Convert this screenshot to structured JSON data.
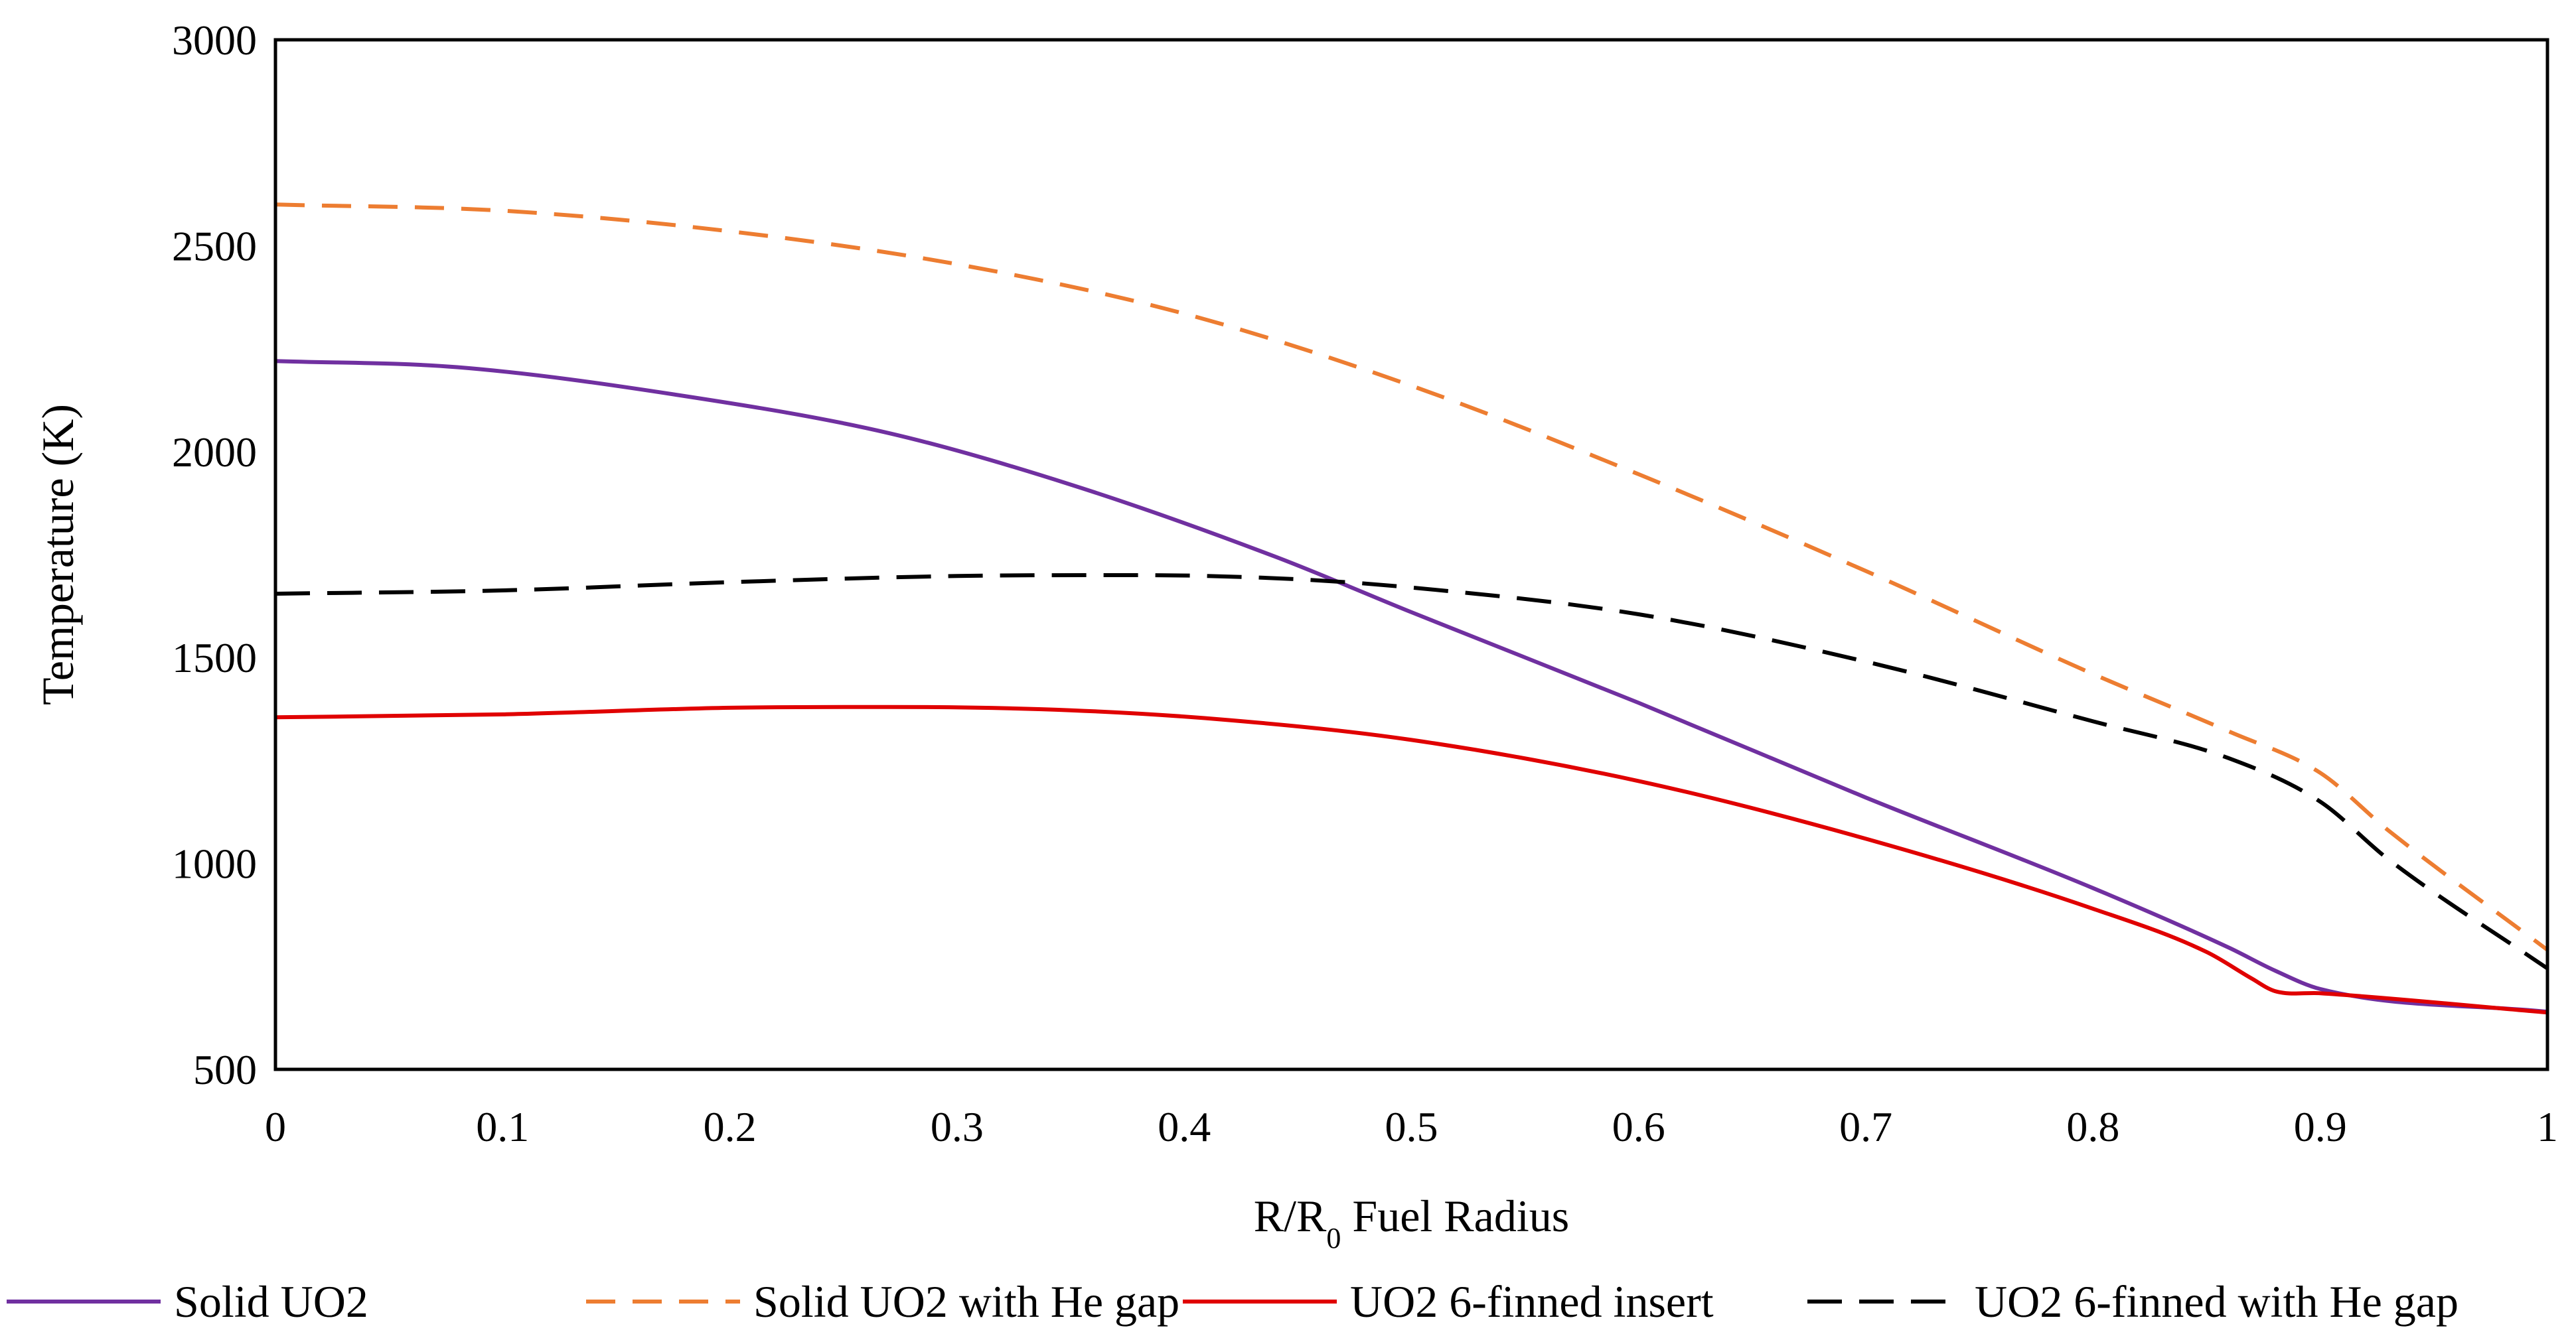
{
  "chart_data": {
    "type": "line",
    "xlabel": "R/R",
    "xlabel_subscript": "0",
    "xlabel_suffix": " Fuel Radius",
    "ylabel": "Temperature (K)",
    "xlim": [
      0,
      1
    ],
    "ylim": [
      500,
      3000
    ],
    "x_ticks": [
      0,
      0.1,
      0.2,
      0.3,
      0.4,
      0.5,
      0.6,
      0.7,
      0.8,
      0.9,
      1
    ],
    "x_tick_labels": [
      "0",
      "0.1",
      "0.2",
      "0.3",
      "0.4",
      "0.5",
      "0.6",
      "0.7",
      "0.8",
      "0.9",
      "1"
    ],
    "y_ticks": [
      500,
      1000,
      1500,
      2000,
      2500,
      3000
    ],
    "y_tick_labels": [
      "500",
      "1000",
      "1500",
      "2000",
      "2500",
      "3000"
    ],
    "grid": false,
    "legend_position": "bottom",
    "series": [
      {
        "name": "Solid UO2",
        "color": "#7030A0",
        "dash": "solid",
        "points": [
          [
            0,
            2220
          ],
          [
            0.08,
            2205
          ],
          [
            0.18,
            2135
          ],
          [
            0.27,
            2045
          ],
          [
            0.35,
            1920
          ],
          [
            0.44,
            1745
          ],
          [
            0.5,
            1610
          ],
          [
            0.6,
            1390
          ],
          [
            0.7,
            1160
          ],
          [
            0.8,
            940
          ],
          [
            0.86,
            795
          ],
          [
            0.88,
            740
          ],
          [
            0.9,
            695
          ],
          [
            1,
            640
          ]
        ]
      },
      {
        "name": "Solid UO2 with He gap",
        "color": "#ED7D31",
        "dash": "dashed",
        "points": [
          [
            0,
            2600
          ],
          [
            0.1,
            2585
          ],
          [
            0.2,
            2535
          ],
          [
            0.3,
            2455
          ],
          [
            0.4,
            2335
          ],
          [
            0.5,
            2160
          ],
          [
            0.6,
            1945
          ],
          [
            0.7,
            1710
          ],
          [
            0.8,
            1460
          ],
          [
            0.86,
            1320
          ],
          [
            0.9,
            1220
          ],
          [
            0.93,
            1080
          ],
          [
            1,
            790
          ]
        ]
      },
      {
        "name": "UO2 6-finned insert",
        "color": "#E00000",
        "dash": "solid",
        "points": [
          [
            0,
            1355
          ],
          [
            0.1,
            1362
          ],
          [
            0.2,
            1378
          ],
          [
            0.27,
            1380
          ],
          [
            0.35,
            1372
          ],
          [
            0.42,
            1348
          ],
          [
            0.5,
            1300
          ],
          [
            0.6,
            1200
          ],
          [
            0.7,
            1060
          ],
          [
            0.8,
            890
          ],
          [
            0.85,
            785
          ],
          [
            0.87,
            720
          ],
          [
            0.88,
            690
          ],
          [
            0.9,
            685
          ],
          [
            1,
            638
          ]
        ]
      },
      {
        "name": "UO2 6-finned with He gap",
        "color": "#000000",
        "dash": "dashed",
        "points": [
          [
            0,
            1655
          ],
          [
            0.1,
            1663
          ],
          [
            0.2,
            1683
          ],
          [
            0.3,
            1698
          ],
          [
            0.38,
            1700
          ],
          [
            0.45,
            1690
          ],
          [
            0.5,
            1670
          ],
          [
            0.6,
            1605
          ],
          [
            0.7,
            1490
          ],
          [
            0.8,
            1345
          ],
          [
            0.86,
            1255
          ],
          [
            0.9,
            1150
          ],
          [
            0.93,
            1010
          ],
          [
            1,
            745
          ]
        ]
      }
    ]
  }
}
